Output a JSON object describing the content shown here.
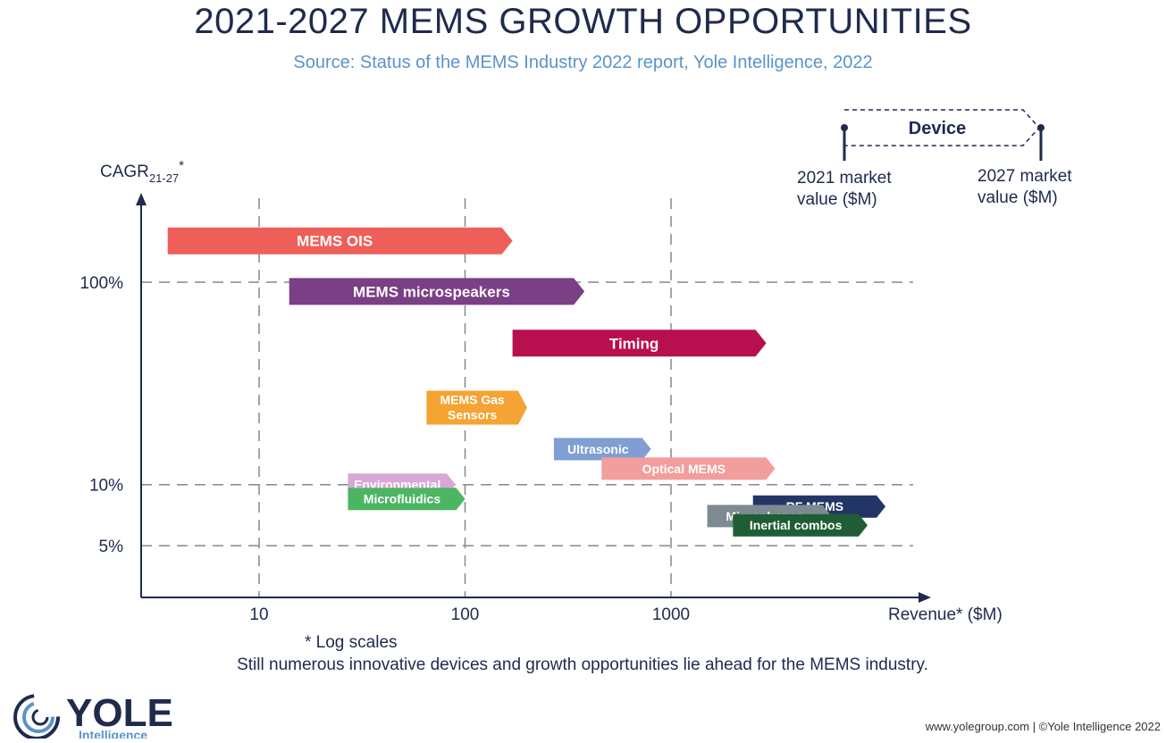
{
  "page": {
    "title": "2021-2027 MEMS GROWTH OPPORTUNITIES",
    "subtitle": "Source: Status of the MEMS Industry 2022 report, Yole Intelligence, 2022",
    "caption": "Still numerous innovative devices and growth opportunities lie ahead for the MEMS industry.",
    "footer": "www.yolegroup.com | ©Yole Intelligence 2022",
    "logo_text": "YOLE",
    "logo_subtext": "Intelligence"
  },
  "legend": {
    "device_label": "Device",
    "start_label_line1": "2021 market",
    "start_label_line2": "value ($M)",
    "end_label_line1": "2027 market",
    "end_label_line2": "value ($M)"
  },
  "chart_data": {
    "type": "arrow-range",
    "title": "2021-2027 MEMS GROWTH OPPORTUNITIES",
    "ylabel_main": "CAGR",
    "ylabel_sub": "21-27",
    "ylabel_star": "*",
    "xlabel": "Revenue* ($M)",
    "scale_note": "* Log scales",
    "x_scale": "log",
    "y_scale": "log",
    "x_ticks": [
      {
        "value": 10,
        "label": "10"
      },
      {
        "value": 100,
        "label": "100"
      },
      {
        "value": 1000,
        "label": "1000"
      }
    ],
    "y_ticks": [
      {
        "value": 5,
        "label": "5%"
      },
      {
        "value": 10,
        "label": "10%"
      },
      {
        "value": 100,
        "label": "100%"
      }
    ],
    "xlim": [
      3.5,
      30000
    ],
    "ylim": [
      3,
      300
    ],
    "grid": true,
    "series": [
      {
        "name": "MEMS OIS",
        "label_lines": [
          "MEMS OIS"
        ],
        "start": 3.6,
        "end": 170,
        "cagr": 160,
        "color": "#ef5f5a",
        "text_color": "#ffffff"
      },
      {
        "name": "MEMS microspeakers",
        "label_lines": [
          "MEMS microspeakers"
        ],
        "start": 14,
        "end": 380,
        "cagr": 90,
        "color": "#7a3f84",
        "text_color": "#ffffff"
      },
      {
        "name": "Timing",
        "label_lines": [
          "Timing"
        ],
        "start": 170,
        "end": 2900,
        "cagr": 50,
        "color": "#b8104e",
        "text_color": "#ffffff"
      },
      {
        "name": "MEMS Gas Sensors",
        "label_lines": [
          "MEMS Gas",
          "Sensors"
        ],
        "start": 65,
        "end": 200,
        "cagr": 24,
        "color": "#f5a333",
        "text_color": "#ffffff"
      },
      {
        "name": "Ultrasonic",
        "label_lines": [
          "Ultrasonic"
        ],
        "start": 270,
        "end": 800,
        "cagr": 15,
        "color": "#7f9fd3",
        "text_color": "#ffffff"
      },
      {
        "name": "Optical MEMS",
        "label_lines": [
          "Optical MEMS"
        ],
        "start": 460,
        "end": 3200,
        "cagr": 12,
        "color": "#f29e9c",
        "text_color": "#ffffff"
      },
      {
        "name": "Environmental",
        "label_lines": [
          "Environmental"
        ],
        "start": 27,
        "end": 90,
        "cagr": 10,
        "color": "#d9a6d7",
        "text_color": "#ffffff"
      },
      {
        "name": "Microfluidics",
        "label_lines": [
          "Microfluidics"
        ],
        "start": 27,
        "end": 100,
        "cagr": 8.5,
        "color": "#4cb562",
        "text_color": "#ffffff"
      },
      {
        "name": "RF MEMS",
        "label_lines": [
          "RF MEMS"
        ],
        "start": 2500,
        "end": 11000,
        "cagr": 7.8,
        "color": "#223566",
        "text_color": "#ffffff"
      },
      {
        "name": "Microphones",
        "label_lines": [
          "Microphones"
        ],
        "start": 1500,
        "end": 6000,
        "cagr": 7.0,
        "color": "#7e8a92",
        "text_color": "#ffffff"
      },
      {
        "name": "Inertial combos",
        "label_lines": [
          "Inertial combos"
        ],
        "start": 2000,
        "end": 9000,
        "cagr": 6.3,
        "color": "#1f5e35",
        "text_color": "#ffffff"
      }
    ]
  },
  "colors": {
    "axis": "#1f2a4d",
    "grid": "#7e8a92",
    "text": "#1f2a4d",
    "subtitle": "#5b93c9",
    "logo": "#1f2a4d",
    "logo_sub": "#5b93c9"
  },
  "icons": {
    "logo": "yole-spiral-logo"
  }
}
